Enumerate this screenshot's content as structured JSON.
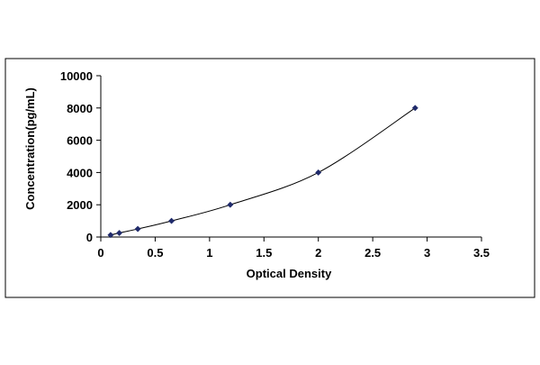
{
  "chart_data": {
    "type": "scatter",
    "title": "",
    "xlabel": "Optical Density",
    "ylabel": "Concentration(pg/mL)",
    "xlim": [
      0,
      3.5
    ],
    "ylim": [
      0,
      10000
    ],
    "x_ticks": [
      "0",
      "0.5",
      "1",
      "1.5",
      "2",
      "2.5",
      "3",
      "3.5"
    ],
    "y_ticks": [
      "0",
      "2000",
      "4000",
      "6000",
      "8000",
      "10000"
    ],
    "grid": false,
    "legend": "none",
    "trendline": "smooth curve",
    "series": [
      {
        "x": [
          0.09,
          0.17,
          0.34,
          0.65,
          1.19,
          2.0,
          2.89
        ],
        "y": [
          125,
          250,
          500,
          1000,
          2000,
          4000,
          8000
        ]
      }
    ],
    "colors": {
      "marker": "#1f2a6b",
      "line": "#000000",
      "axis": "#000000",
      "frame": "#000000"
    }
  }
}
